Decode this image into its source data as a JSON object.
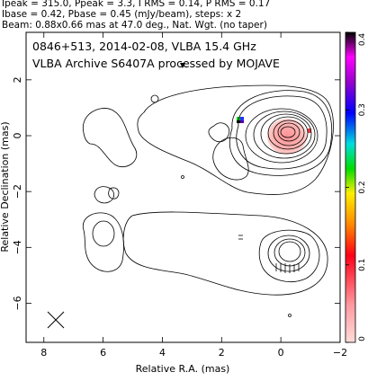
{
  "header": {
    "line1": "Ipeak = 315.0, Ppeak = 3.3, I RMS = 0.14, P RMS = 0.17",
    "line2": "Ibase = 0.42, Pbase = 0.45 (mJy/beam), steps: x 2",
    "line3": "Beam: 0.88x0.66 mas at 47.0 deg., Nat. Wgt. (no taper)"
  },
  "chart_data": {
    "type": "contour",
    "title_line1": "0846+513, 2014-02-08, VLBA 15.4 GHz",
    "title_line2": "VLBA Archive S6407A processed by MOJAVE",
    "xlabel": "Relative R.A. (mas)",
    "ylabel": "Relative Declination (mas)",
    "xlim": [
      8.6,
      -2.0
    ],
    "ylim": [
      -7.4,
      3.7
    ],
    "x_ticks": [
      8,
      6,
      4,
      2,
      0,
      -2
    ],
    "x_tick_labels": [
      "8",
      "6",
      "4",
      "2",
      "0",
      "−2"
    ],
    "y_ticks": [
      2,
      0,
      -2,
      -4,
      -6
    ],
    "y_tick_labels": [
      "2",
      "0",
      "−2",
      "−4",
      "−6"
    ],
    "colorbar": {
      "ticks": [
        0,
        0.1,
        0.2,
        0.3,
        0.4
      ],
      "tick_labels": [
        "0",
        "0.1",
        "0.2",
        "0.3",
        "0.4"
      ],
      "range": [
        0,
        0.4
      ]
    },
    "core": {
      "x": 0,
      "y": 0
    },
    "secondary_component": {
      "x": 0,
      "y": -3.9
    },
    "beam_marker": {
      "x": 7.8,
      "y": -6.6
    }
  }
}
